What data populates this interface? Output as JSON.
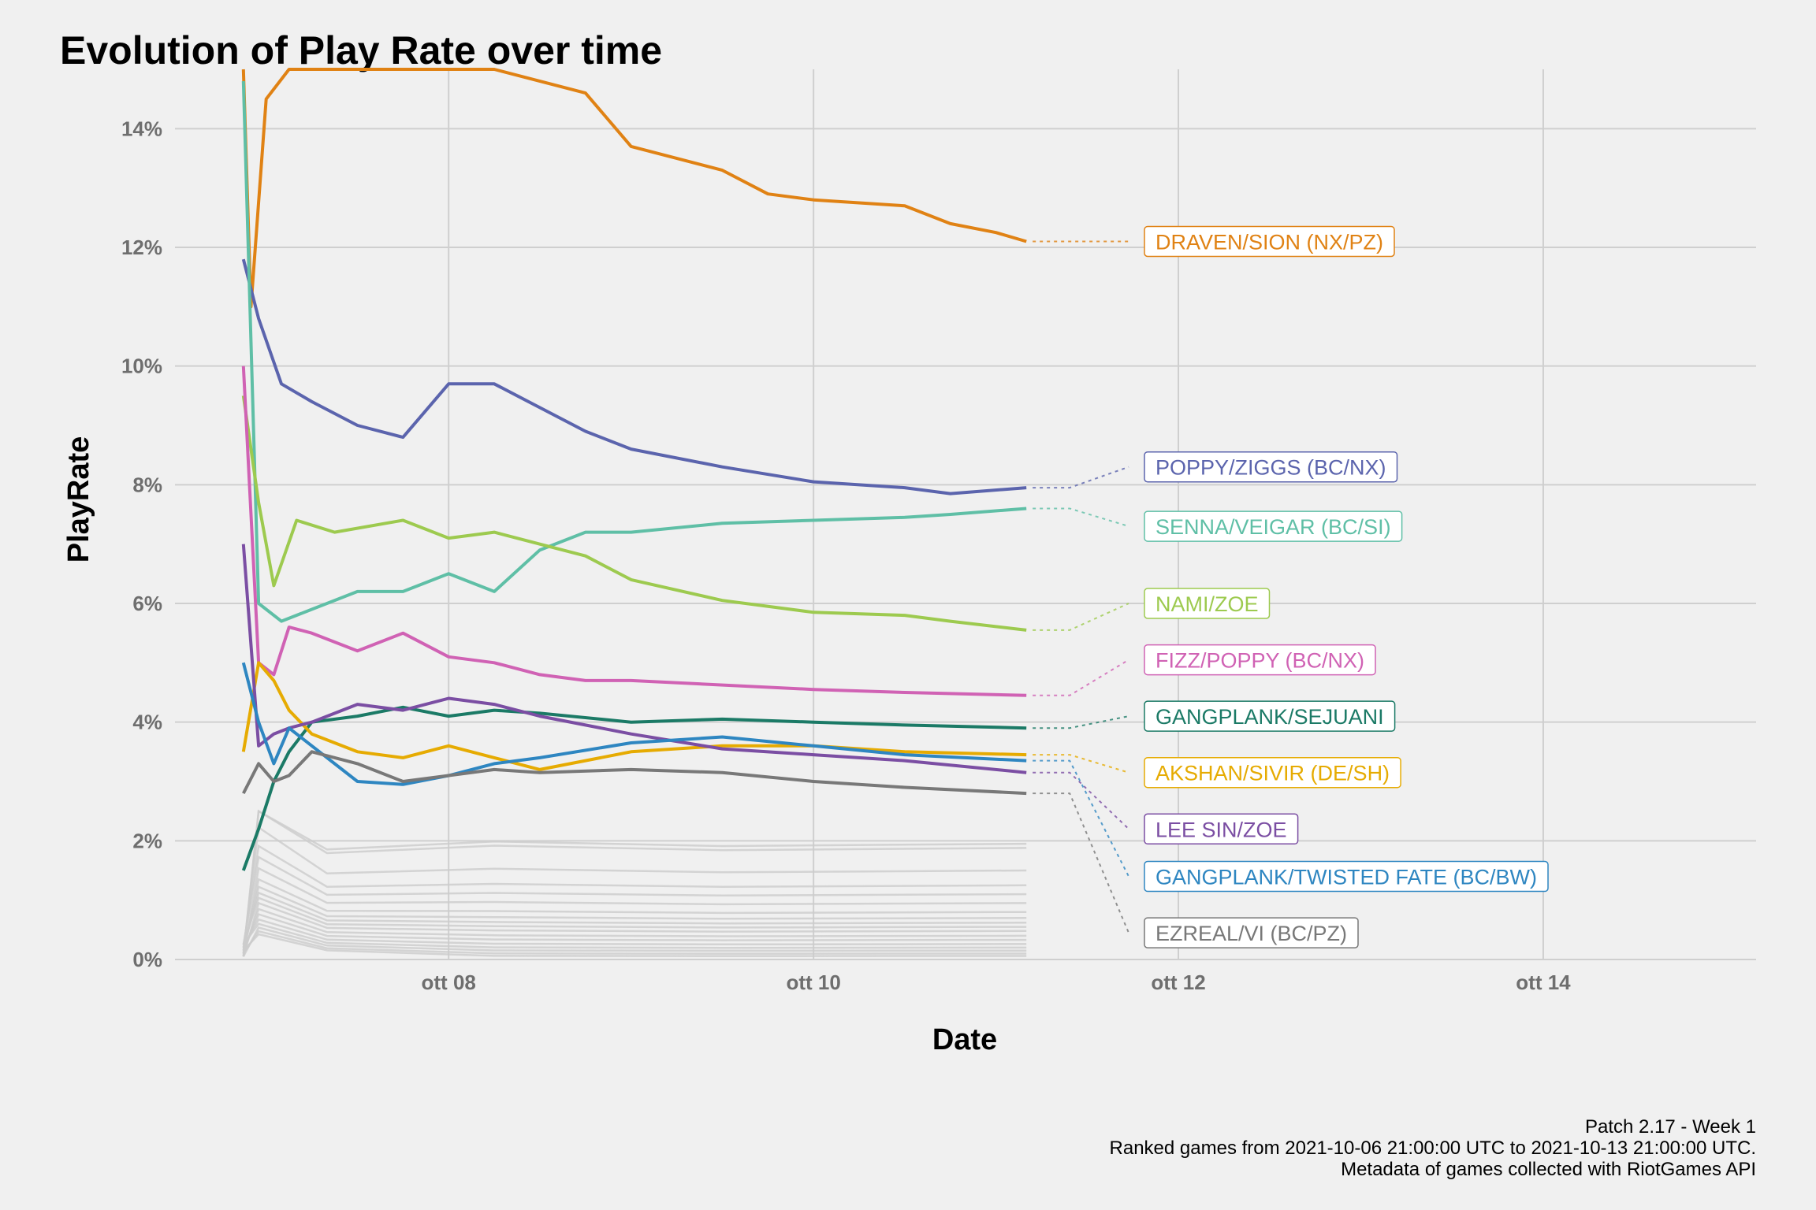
{
  "chart_data": {
    "type": "line",
    "title": "Evolution of Play Rate over time",
    "xlabel": "Date",
    "ylabel": "PlayRate",
    "x_ticks": [
      {
        "date": "2021-10-08",
        "label": "ott 08"
      },
      {
        "date": "2021-10-10",
        "label": "ott 10"
      },
      {
        "date": "2021-10-12",
        "label": "ott 12"
      },
      {
        "date": "2021-10-14",
        "label": "ott 14"
      }
    ],
    "xlim": [
      "2021-10-06T12:00",
      "2021-10-15T04:00"
    ],
    "y_ticks": [
      0,
      2,
      4,
      6,
      8,
      10,
      12,
      14
    ],
    "y_tick_labels": [
      "0%",
      "2%",
      "4%",
      "6%",
      "8%",
      "10%",
      "12%",
      "14%"
    ],
    "ylim": [
      0,
      15
    ],
    "grid": true,
    "legend": "direct labels at right end of lines",
    "caption": [
      "Patch 2.17 - Week 1",
      "Ranked games from 2021-10-06 21:00:00 UTC to 2021-10-13 21:00:00 UTC.",
      "Metadata of games collected with RiotGames API"
    ],
    "background_series_color": "#cccccc",
    "background_series_end_values": [
      1.95,
      1.88,
      1.5,
      1.25,
      1.1,
      0.95,
      0.8,
      0.7,
      0.62,
      0.55,
      0.48,
      0.4,
      0.33,
      0.26,
      0.2,
      0.15,
      0.1,
      0.06
    ],
    "series": [
      {
        "name": "DRAVEN/SION (NX/PZ)",
        "color": "#e08214",
        "x": [
          "2021-10-06T21:00",
          "2021-10-06T22:00",
          "2021-10-07T00:00",
          "2021-10-07T03:00",
          "2021-10-07T09:00",
          "2021-10-07T18:00",
          "2021-10-08T06:00",
          "2021-10-08T18:00",
          "2021-10-09T00:00",
          "2021-10-09T12:00",
          "2021-10-09T18:00",
          "2021-10-10T00:00",
          "2021-10-10T12:00",
          "2021-10-10T18:00",
          "2021-10-11T00:00",
          "2021-10-11T04:00"
        ],
        "y": [
          15.0,
          11.0,
          14.5,
          15.0,
          15.0,
          15.0,
          15.0,
          14.6,
          13.7,
          13.3,
          12.9,
          12.8,
          12.7,
          12.4,
          12.25,
          12.1
        ],
        "label_y": 12.1
      },
      {
        "name": "POPPY/ZIGGS (BC/NX)",
        "color": "#5b64ad",
        "x": [
          "2021-10-06T21:00",
          "2021-10-06T23:00",
          "2021-10-07T02:00",
          "2021-10-07T06:00",
          "2021-10-07T12:00",
          "2021-10-07T18:00",
          "2021-10-08T00:00",
          "2021-10-08T06:00",
          "2021-10-08T12:00",
          "2021-10-08T18:00",
          "2021-10-09T00:00",
          "2021-10-09T12:00",
          "2021-10-10T00:00",
          "2021-10-10T12:00",
          "2021-10-10T18:00",
          "2021-10-11T04:00"
        ],
        "y": [
          11.8,
          10.8,
          9.7,
          9.4,
          9.0,
          8.8,
          9.7,
          9.7,
          9.3,
          8.9,
          8.6,
          8.3,
          8.05,
          7.95,
          7.85,
          7.95
        ],
        "label_y": 8.3
      },
      {
        "name": "SENNA/VEIGAR (BC/SI)",
        "color": "#5fbfa6",
        "x": [
          "2021-10-06T21:00",
          "2021-10-06T23:00",
          "2021-10-07T02:00",
          "2021-10-07T06:00",
          "2021-10-07T12:00",
          "2021-10-07T18:00",
          "2021-10-08T00:00",
          "2021-10-08T06:00",
          "2021-10-08T12:00",
          "2021-10-08T18:00",
          "2021-10-09T00:00",
          "2021-10-09T12:00",
          "2021-10-10T00:00",
          "2021-10-10T12:00",
          "2021-10-10T18:00",
          "2021-10-11T04:00"
        ],
        "y": [
          14.8,
          6.0,
          5.7,
          5.9,
          6.2,
          6.2,
          6.5,
          6.2,
          6.9,
          7.2,
          7.2,
          7.35,
          7.4,
          7.45,
          7.5,
          7.6
        ],
        "label_y": 7.3
      },
      {
        "name": "NAMI/ZOE",
        "color": "#9dca4f",
        "x": [
          "2021-10-06T21:00",
          "2021-10-06T23:00",
          "2021-10-07T01:00",
          "2021-10-07T04:00",
          "2021-10-07T09:00",
          "2021-10-07T18:00",
          "2021-10-08T00:00",
          "2021-10-08T06:00",
          "2021-10-08T12:00",
          "2021-10-08T18:00",
          "2021-10-09T00:00",
          "2021-10-09T12:00",
          "2021-10-10T00:00",
          "2021-10-10T12:00",
          "2021-10-10T18:00",
          "2021-10-11T04:00"
        ],
        "y": [
          9.5,
          7.7,
          6.3,
          7.4,
          7.2,
          7.4,
          7.1,
          7.2,
          7.0,
          6.8,
          6.4,
          6.05,
          5.85,
          5.8,
          5.7,
          5.55
        ],
        "label_y": 6.0
      },
      {
        "name": "FIZZ/POPPY (BC/NX)",
        "color": "#d062b4",
        "x": [
          "2021-10-06T21:00",
          "2021-10-06T23:00",
          "2021-10-07T01:00",
          "2021-10-07T03:00",
          "2021-10-07T06:00",
          "2021-10-07T12:00",
          "2021-10-07T18:00",
          "2021-10-08T00:00",
          "2021-10-08T06:00",
          "2021-10-08T12:00",
          "2021-10-08T18:00",
          "2021-10-09T00:00",
          "2021-10-10T00:00",
          "2021-10-10T12:00",
          "2021-10-11T04:00"
        ],
        "y": [
          10.0,
          5.0,
          4.8,
          5.6,
          5.5,
          5.2,
          5.5,
          5.1,
          5.0,
          4.8,
          4.7,
          4.7,
          4.55,
          4.5,
          4.45
        ],
        "label_y": 5.05
      },
      {
        "name": "GANGPLANK/SEJUANI",
        "color": "#1b7a66",
        "x": [
          "2021-10-06T21:00",
          "2021-10-06T23:00",
          "2021-10-07T01:00",
          "2021-10-07T03:00",
          "2021-10-07T06:00",
          "2021-10-07T12:00",
          "2021-10-07T18:00",
          "2021-10-08T00:00",
          "2021-10-08T06:00",
          "2021-10-08T12:00",
          "2021-10-09T00:00",
          "2021-10-09T12:00",
          "2021-10-10T00:00",
          "2021-10-10T12:00",
          "2021-10-11T04:00"
        ],
        "y": [
          1.5,
          2.2,
          3.0,
          3.5,
          4.0,
          4.1,
          4.25,
          4.1,
          4.2,
          4.15,
          4.0,
          4.05,
          4.0,
          3.95,
          3.9
        ],
        "label_y": 4.1
      },
      {
        "name": "AKSHAN/SIVIR (DE/SH)",
        "color": "#e6ab02",
        "x": [
          "2021-10-06T21:00",
          "2021-10-06T23:00",
          "2021-10-07T01:00",
          "2021-10-07T03:00",
          "2021-10-07T06:00",
          "2021-10-07T12:00",
          "2021-10-07T18:00",
          "2021-10-08T00:00",
          "2021-10-08T06:00",
          "2021-10-08T12:00",
          "2021-10-09T00:00",
          "2021-10-09T12:00",
          "2021-10-10T00:00",
          "2021-10-10T12:00",
          "2021-10-11T04:00"
        ],
        "y": [
          3.5,
          5.0,
          4.7,
          4.2,
          3.8,
          3.5,
          3.4,
          3.6,
          3.4,
          3.2,
          3.5,
          3.6,
          3.6,
          3.5,
          3.45
        ],
        "label_y": 3.15
      },
      {
        "name": "LEE SIN/ZOE",
        "color": "#7b4ea3",
        "x": [
          "2021-10-06T21:00",
          "2021-10-06T23:00",
          "2021-10-07T01:00",
          "2021-10-07T03:00",
          "2021-10-07T06:00",
          "2021-10-07T12:00",
          "2021-10-07T18:00",
          "2021-10-08T00:00",
          "2021-10-08T06:00",
          "2021-10-08T12:00",
          "2021-10-09T00:00",
          "2021-10-09T12:00",
          "2021-10-10T00:00",
          "2021-10-10T12:00",
          "2021-10-11T04:00"
        ],
        "y": [
          7.0,
          3.6,
          3.8,
          3.9,
          4.0,
          4.3,
          4.2,
          4.4,
          4.3,
          4.1,
          3.8,
          3.55,
          3.45,
          3.35,
          3.15
        ],
        "label_y": 2.2
      },
      {
        "name": "GANGPLANK/TWISTED FATE (BC/BW)",
        "color": "#2e86c1",
        "x": [
          "2021-10-06T21:00",
          "2021-10-06T23:00",
          "2021-10-07T01:00",
          "2021-10-07T03:00",
          "2021-10-07T06:00",
          "2021-10-07T12:00",
          "2021-10-07T18:00",
          "2021-10-08T00:00",
          "2021-10-08T06:00",
          "2021-10-08T12:00",
          "2021-10-09T00:00",
          "2021-10-09T12:00",
          "2021-10-10T00:00",
          "2021-10-10T12:00",
          "2021-10-11T04:00"
        ],
        "y": [
          5.0,
          4.0,
          3.3,
          3.9,
          3.6,
          3.0,
          2.95,
          3.1,
          3.3,
          3.4,
          3.65,
          3.75,
          3.6,
          3.45,
          3.35
        ],
        "label_y": 1.4
      },
      {
        "name": "EZREAL/VI (BC/PZ)",
        "color": "#787878",
        "x": [
          "2021-10-06T21:00",
          "2021-10-06T23:00",
          "2021-10-07T01:00",
          "2021-10-07T03:00",
          "2021-10-07T06:00",
          "2021-10-07T12:00",
          "2021-10-07T18:00",
          "2021-10-08T00:00",
          "2021-10-08T06:00",
          "2021-10-08T12:00",
          "2021-10-09T00:00",
          "2021-10-09T12:00",
          "2021-10-10T00:00",
          "2021-10-10T12:00",
          "2021-10-11T04:00"
        ],
        "y": [
          2.8,
          3.3,
          3.0,
          3.1,
          3.5,
          3.3,
          3.0,
          3.1,
          3.2,
          3.15,
          3.2,
          3.15,
          3.0,
          2.9,
          2.8
        ],
        "label_y": 0.45
      }
    ]
  }
}
